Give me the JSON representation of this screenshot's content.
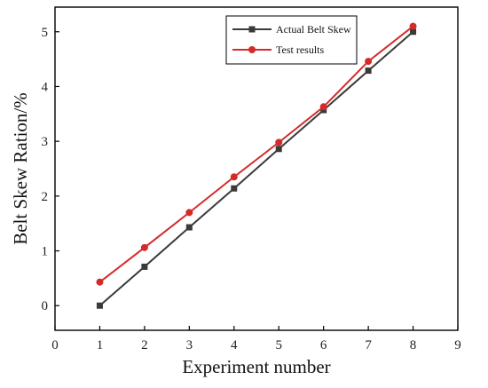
{
  "chart_data": {
    "type": "line",
    "xlabel": "Experiment number",
    "ylabel": "Belt Skew Ration/%",
    "xlim": [
      0,
      9
    ],
    "ylim": [
      -0.45,
      5.45
    ],
    "xticks": [
      0,
      1,
      2,
      3,
      4,
      5,
      6,
      7,
      8,
      9
    ],
    "yticks": [
      0,
      1,
      2,
      3,
      4,
      5
    ],
    "grid": false,
    "legend_position": "top-center",
    "x": [
      1,
      2,
      3,
      4,
      5,
      6,
      7,
      8
    ],
    "series": [
      {
        "name": "Actual Belt Skew",
        "color": "#3a3a3a",
        "marker": "square",
        "values": [
          0.0,
          0.71,
          1.43,
          2.14,
          2.86,
          3.57,
          4.29,
          5.0
        ]
      },
      {
        "name": "Test results",
        "color": "#d42a2a",
        "marker": "circle",
        "values": [
          0.43,
          1.06,
          1.7,
          2.35,
          2.98,
          3.63,
          4.46,
          5.1
        ]
      }
    ]
  }
}
